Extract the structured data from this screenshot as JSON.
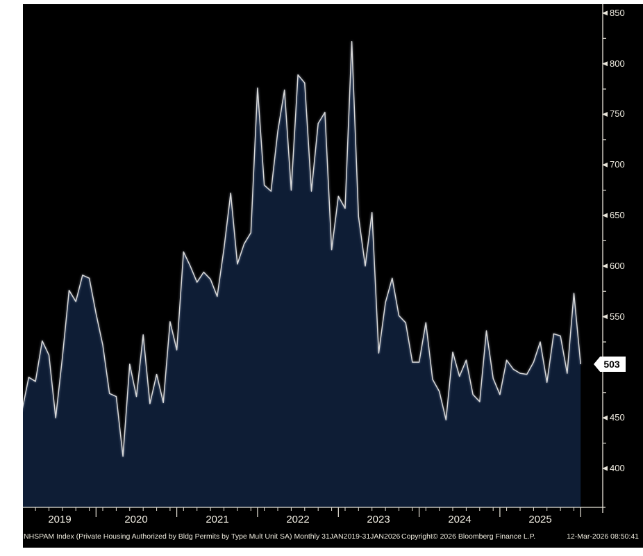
{
  "footer": {
    "description": "NHSPAM Index (Private Housing Authorized by Bldg Permits by Type Mult Unit SA) Monthly 31JAN2019-31JAN2026",
    "copyright": "Copyright© 2026 Bloomberg Finance L.P.",
    "timestamp": "12-Mar-2026 08:50:41"
  },
  "y_axis": {
    "major_tick_labels": [
      "850",
      "800",
      "750",
      "700",
      "650",
      "600",
      "550",
      "450",
      "400"
    ],
    "major_tick_values": [
      850,
      800,
      750,
      700,
      650,
      600,
      550,
      450,
      400
    ],
    "minor_tick_values": [
      825,
      775,
      725,
      675,
      625,
      575,
      525,
      475,
      425
    ],
    "last_price_badge": "503"
  },
  "x_axis": {
    "year_labels": [
      "2019",
      "2020",
      "2021",
      "2022",
      "2023",
      "2024",
      "2025"
    ]
  },
  "chart_data": {
    "type": "area",
    "title": "NHSPAM Index (Private Housing Authorized by Bldg Permits by Type Mult Unit SA)",
    "frequency": "monthly",
    "x_start": "2019-01",
    "x_end": "2026-01",
    "xlabel": "",
    "ylabel": "",
    "ylim": [
      361.5,
      857.5
    ],
    "grid": false,
    "legend_position": "none",
    "last_value": 503,
    "values": [
      457,
      457,
      490,
      486,
      526,
      512,
      450,
      510,
      576,
      565,
      591,
      588,
      553,
      522,
      474,
      471,
      412,
      503,
      471,
      532,
      464,
      493,
      465,
      545,
      517,
      614,
      600,
      584,
      594,
      587,
      570,
      617,
      672,
      602,
      622,
      633,
      776,
      680,
      674,
      733,
      774,
      675,
      789,
      781,
      674,
      741,
      752,
      616,
      669,
      657,
      822,
      649,
      600,
      653,
      514,
      564,
      588,
      551,
      544,
      505,
      505,
      544,
      488,
      476,
      448,
      515,
      491,
      507,
      473,
      466,
      536,
      489,
      473,
      507,
      498,
      494,
      493,
      505,
      525,
      485,
      533,
      531,
      494,
      573,
      503
    ],
    "colors": {
      "background": "#000000",
      "area_fill": "#0e1d35",
      "line": "#d9d9d9",
      "axis": "#e9e5da",
      "labels": "#f3efe4",
      "badge_bg": "#ffffff",
      "badge_text": "#000000",
      "page_margin": "#ffffff"
    }
  }
}
